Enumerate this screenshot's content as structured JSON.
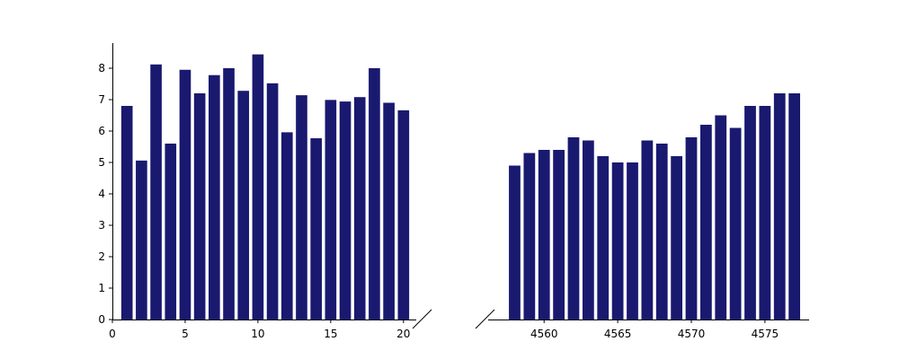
{
  "chart_data": {
    "type": "bar",
    "layout": "broken-x-axis",
    "title": "",
    "xlabel": "",
    "ylabel": "",
    "ylim": [
      0,
      8.8
    ],
    "yticks": [
      0,
      1,
      2,
      3,
      4,
      5,
      6,
      7,
      8
    ],
    "bar_color": "#191970",
    "grid": false,
    "legend": "none",
    "panels": [
      {
        "xlim": [
          0,
          21
        ],
        "xticks": [
          0,
          5,
          10,
          15,
          20
        ],
        "x": [
          1,
          2,
          3,
          4,
          5,
          6,
          7,
          8,
          9,
          10,
          11,
          12,
          13,
          14,
          15,
          16,
          17,
          18,
          19,
          20
        ],
        "values": [
          6.8,
          5.06,
          8.12,
          5.6,
          7.95,
          7.2,
          7.78,
          8.0,
          7.28,
          8.44,
          7.52,
          5.96,
          7.14,
          5.77,
          6.99,
          6.94,
          7.08,
          8.0,
          6.9,
          6.66
        ]
      },
      {
        "xlim": [
          4556.2,
          4578.0
        ],
        "xticks": [
          4560,
          4565,
          4570,
          4575
        ],
        "x": [
          4558,
          4559,
          4560,
          4561,
          4562,
          4563,
          4564,
          4565,
          4566,
          4567,
          4568,
          4569,
          4570,
          4571,
          4572,
          4573,
          4574,
          4575,
          4576,
          4577
        ],
        "values": [
          4.9,
          5.3,
          5.4,
          5.4,
          5.8,
          5.7,
          5.2,
          5.0,
          5.0,
          5.7,
          5.6,
          5.2,
          5.8,
          6.2,
          6.5,
          6.1,
          6.8,
          6.8,
          7.2,
          7.2
        ]
      }
    ]
  }
}
